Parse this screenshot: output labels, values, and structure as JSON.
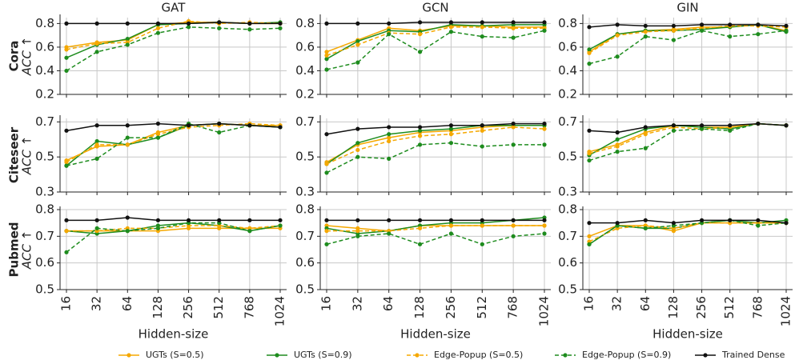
{
  "chart_data": [
    {
      "type": "line",
      "title": "GAT",
      "ylabel": "Cora",
      "ylabel_metric": "ACC ↑",
      "categories": [
        null,
        null,
        null,
        null,
        null,
        null,
        null,
        null
      ],
      "ylim": [
        0.2,
        0.85
      ],
      "yticks": [
        0.2,
        0.4,
        0.6,
        0.8
      ],
      "grid": true,
      "series": [
        {
          "name": "UGTs (S=0.5)",
          "color": "#f5a800",
          "dash": false,
          "values": [
            0.6,
            0.64,
            0.66,
            0.79,
            0.81,
            0.81,
            0.8,
            0.8
          ]
        },
        {
          "name": "UGTs (S=0.9)",
          "color": "#1e8c1e",
          "dash": false,
          "values": [
            0.51,
            0.62,
            0.67,
            0.79,
            0.8,
            0.81,
            0.8,
            0.81
          ]
        },
        {
          "name": "Edge-Popup (S=0.5)",
          "color": "#f5a800",
          "dash": true,
          "values": [
            0.58,
            0.63,
            0.64,
            0.76,
            0.82,
            0.8,
            0.81,
            0.8
          ]
        },
        {
          "name": "Edge-Popup (S=0.9)",
          "color": "#1e8c1e",
          "dash": true,
          "values": [
            0.4,
            0.56,
            0.62,
            0.72,
            0.77,
            0.76,
            0.75,
            0.76
          ]
        },
        {
          "name": "Trained Dense",
          "color": "#111111",
          "dash": false,
          "values": [
            0.8,
            0.8,
            0.8,
            0.8,
            0.8,
            0.81,
            0.8,
            0.8
          ]
        }
      ]
    },
    {
      "type": "line",
      "title": "GCN",
      "categories": [
        null,
        null,
        null,
        null,
        null,
        null,
        null,
        null
      ],
      "ylim": [
        0.2,
        0.85
      ],
      "yticks": [
        0.2,
        0.4,
        0.6,
        0.8
      ],
      "grid": true,
      "series": [
        {
          "name": "UGTs (S=0.5)",
          "color": "#f5a800",
          "dash": false,
          "values": [
            0.56,
            0.66,
            0.76,
            0.74,
            0.78,
            0.78,
            0.77,
            0.77
          ]
        },
        {
          "name": "UGTs (S=0.9)",
          "color": "#1e8c1e",
          "dash": false,
          "values": [
            0.5,
            0.65,
            0.74,
            0.73,
            0.79,
            0.78,
            0.79,
            0.79
          ]
        },
        {
          "name": "Edge-Popup (S=0.5)",
          "color": "#f5a800",
          "dash": true,
          "values": [
            0.53,
            0.62,
            0.72,
            0.71,
            0.77,
            0.77,
            0.76,
            0.76
          ]
        },
        {
          "name": "Edge-Popup (S=0.9)",
          "color": "#1e8c1e",
          "dash": true,
          "values": [
            0.41,
            0.47,
            0.71,
            0.56,
            0.73,
            0.69,
            0.68,
            0.74
          ]
        },
        {
          "name": "Trained Dense",
          "color": "#111111",
          "dash": false,
          "values": [
            0.8,
            0.8,
            0.8,
            0.81,
            0.81,
            0.81,
            0.81,
            0.81
          ]
        }
      ]
    },
    {
      "type": "line",
      "title": "GIN",
      "categories": [
        null,
        null,
        null,
        null,
        null,
        null,
        null,
        null
      ],
      "ylim": [
        0.2,
        0.85
      ],
      "yticks": [
        0.2,
        0.4,
        0.6,
        0.8
      ],
      "grid": true,
      "series": [
        {
          "name": "UGTs (S=0.5)",
          "color": "#f5a800",
          "dash": false,
          "values": [
            0.56,
            0.71,
            0.74,
            0.75,
            0.77,
            0.77,
            0.79,
            0.74
          ]
        },
        {
          "name": "UGTs (S=0.9)",
          "color": "#1e8c1e",
          "dash": false,
          "values": [
            0.58,
            0.71,
            0.74,
            0.74,
            0.75,
            0.77,
            0.79,
            0.73
          ]
        },
        {
          "name": "Edge-Popup (S=0.5)",
          "color": "#f5a800",
          "dash": true,
          "values": [
            0.55,
            0.7,
            0.73,
            0.74,
            0.76,
            0.78,
            0.78,
            0.77
          ]
        },
        {
          "name": "Edge-Popup (S=0.9)",
          "color": "#1e8c1e",
          "dash": true,
          "values": [
            0.46,
            0.52,
            0.69,
            0.66,
            0.74,
            0.69,
            0.71,
            0.74
          ]
        },
        {
          "name": "Trained Dense",
          "color": "#111111",
          "dash": false,
          "values": [
            0.77,
            0.79,
            0.78,
            0.78,
            0.79,
            0.79,
            0.79,
            0.78
          ]
        }
      ]
    },
    {
      "type": "line",
      "ylabel": "Citeseer",
      "ylabel_metric": "ACC ↑",
      "categories": [
        null,
        null,
        null,
        null,
        null,
        null,
        null,
        null
      ],
      "ylim": [
        0.3,
        0.72
      ],
      "yticks": [
        0.3,
        0.5,
        0.7
      ],
      "grid": true,
      "series": [
        {
          "name": "UGTs (S=0.5)",
          "color": "#f5a800",
          "dash": false,
          "values": [
            0.48,
            0.56,
            0.57,
            0.64,
            0.68,
            0.69,
            0.68,
            0.68
          ]
        },
        {
          "name": "UGTs (S=0.9)",
          "color": "#1e8c1e",
          "dash": false,
          "values": [
            0.45,
            0.59,
            0.57,
            0.61,
            0.68,
            0.69,
            0.68,
            0.67
          ]
        },
        {
          "name": "Edge-Popup (S=0.5)",
          "color": "#f5a800",
          "dash": true,
          "values": [
            0.47,
            0.57,
            0.57,
            0.63,
            0.67,
            0.68,
            0.69,
            0.68
          ]
        },
        {
          "name": "Edge-Popup (S=0.9)",
          "color": "#1e8c1e",
          "dash": true,
          "values": [
            0.45,
            0.49,
            0.61,
            0.61,
            0.69,
            0.64,
            0.68,
            0.67
          ]
        },
        {
          "name": "Trained Dense",
          "color": "#111111",
          "dash": false,
          "values": [
            0.65,
            0.68,
            0.68,
            0.69,
            0.68,
            0.69,
            0.68,
            0.67
          ]
        }
      ]
    },
    {
      "type": "line",
      "categories": [
        null,
        null,
        null,
        null,
        null,
        null,
        null,
        null
      ],
      "ylim": [
        0.3,
        0.72
      ],
      "yticks": [
        0.3,
        0.5,
        0.7
      ],
      "grid": true,
      "series": [
        {
          "name": "UGTs (S=0.5)",
          "color": "#f5a800",
          "dash": false,
          "values": [
            0.47,
            0.57,
            0.61,
            0.64,
            0.65,
            0.67,
            0.68,
            0.68
          ]
        },
        {
          "name": "UGTs (S=0.9)",
          "color": "#1e8c1e",
          "dash": false,
          "values": [
            0.46,
            0.58,
            0.63,
            0.65,
            0.66,
            0.68,
            0.68,
            0.68
          ]
        },
        {
          "name": "Edge-Popup (S=0.5)",
          "color": "#f5a800",
          "dash": true,
          "values": [
            0.46,
            0.54,
            0.59,
            0.62,
            0.63,
            0.65,
            0.67,
            0.66
          ]
        },
        {
          "name": "Edge-Popup (S=0.9)",
          "color": "#1e8c1e",
          "dash": true,
          "values": [
            0.41,
            0.5,
            0.49,
            0.57,
            0.58,
            0.56,
            0.57,
            0.57
          ]
        },
        {
          "name": "Trained Dense",
          "color": "#111111",
          "dash": false,
          "values": [
            0.63,
            0.66,
            0.67,
            0.67,
            0.68,
            0.68,
            0.69,
            0.69
          ]
        }
      ]
    },
    {
      "type": "line",
      "categories": [
        null,
        null,
        null,
        null,
        null,
        null,
        null,
        null
      ],
      "ylim": [
        0.3,
        0.72
      ],
      "yticks": [
        0.3,
        0.5,
        0.7
      ],
      "grid": true,
      "series": [
        {
          "name": "UGTs (S=0.5)",
          "color": "#f5a800",
          "dash": false,
          "values": [
            0.53,
            0.57,
            0.64,
            0.68,
            0.67,
            0.67,
            0.69,
            0.68
          ]
        },
        {
          "name": "UGTs (S=0.9)",
          "color": "#1e8c1e",
          "dash": false,
          "values": [
            0.51,
            0.6,
            0.66,
            0.68,
            0.67,
            0.66,
            0.69,
            0.68
          ]
        },
        {
          "name": "Edge-Popup (S=0.5)",
          "color": "#f5a800",
          "dash": true,
          "values": [
            0.52,
            0.56,
            0.63,
            0.67,
            0.66,
            0.67,
            0.69,
            0.68
          ]
        },
        {
          "name": "Edge-Popup (S=0.9)",
          "color": "#1e8c1e",
          "dash": true,
          "values": [
            0.48,
            0.53,
            0.55,
            0.65,
            0.66,
            0.65,
            0.69,
            0.68
          ]
        },
        {
          "name": "Trained Dense",
          "color": "#111111",
          "dash": false,
          "values": [
            0.65,
            0.64,
            0.67,
            0.68,
            0.68,
            0.68,
            0.69,
            0.68
          ]
        }
      ]
    },
    {
      "type": "line",
      "ylabel": "Pubmed",
      "ylabel_metric": "ACC ↑",
      "xlabel": "Hidden-size",
      "categories": [
        "16",
        "32",
        "64",
        "128",
        "256",
        "512",
        "768",
        "1024"
      ],
      "ylim": [
        0.5,
        0.8
      ],
      "yticks": [
        0.5,
        0.6,
        0.7,
        0.8
      ],
      "grid": true,
      "series": [
        {
          "name": "UGTs (S=0.5)",
          "color": "#f5a800",
          "dash": false,
          "values": [
            0.72,
            0.72,
            0.72,
            0.72,
            0.73,
            0.73,
            0.73,
            0.73
          ]
        },
        {
          "name": "UGTs (S=0.9)",
          "color": "#1e8c1e",
          "dash": false,
          "values": [
            0.72,
            0.71,
            0.72,
            0.74,
            0.75,
            0.74,
            0.72,
            0.74
          ]
        },
        {
          "name": "Edge-Popup (S=0.5)",
          "color": "#f5a800",
          "dash": true,
          "values": [
            0.72,
            0.72,
            0.73,
            0.73,
            0.74,
            0.74,
            0.73,
            0.74
          ]
        },
        {
          "name": "Edge-Popup (S=0.9)",
          "color": "#1e8c1e",
          "dash": true,
          "values": [
            0.64,
            0.73,
            0.72,
            0.73,
            0.75,
            0.75,
            0.72,
            0.74
          ]
        },
        {
          "name": "Trained Dense",
          "color": "#111111",
          "dash": false,
          "values": [
            0.76,
            0.76,
            0.77,
            0.76,
            0.76,
            0.76,
            0.76,
            0.76
          ]
        }
      ]
    },
    {
      "type": "line",
      "xlabel": "Hidden-size",
      "categories": [
        "16",
        "32",
        "64",
        "128",
        "256",
        "512",
        "768",
        "1024"
      ],
      "ylim": [
        0.5,
        0.8
      ],
      "yticks": [
        0.5,
        0.6,
        0.7,
        0.8
      ],
      "grid": true,
      "series": [
        {
          "name": "UGTs (S=0.5)",
          "color": "#f5a800",
          "dash": false,
          "values": [
            0.74,
            0.73,
            0.72,
            0.74,
            0.74,
            0.74,
            0.74,
            0.74
          ]
        },
        {
          "name": "UGTs (S=0.9)",
          "color": "#1e8c1e",
          "dash": false,
          "values": [
            0.73,
            0.71,
            0.72,
            0.74,
            0.75,
            0.75,
            0.76,
            0.77
          ]
        },
        {
          "name": "Edge-Popup (S=0.5)",
          "color": "#f5a800",
          "dash": true,
          "values": [
            0.72,
            0.72,
            0.72,
            0.73,
            0.74,
            0.74,
            0.74,
            0.74
          ]
        },
        {
          "name": "Edge-Popup (S=0.9)",
          "color": "#1e8c1e",
          "dash": true,
          "values": [
            0.67,
            0.7,
            0.71,
            0.67,
            0.71,
            0.67,
            0.7,
            0.71
          ]
        },
        {
          "name": "Trained Dense",
          "color": "#111111",
          "dash": false,
          "values": [
            0.76,
            0.76,
            0.76,
            0.76,
            0.76,
            0.76,
            0.76,
            0.76
          ]
        }
      ]
    },
    {
      "type": "line",
      "xlabel": "Hidden-size",
      "categories": [
        "16",
        "32",
        "64",
        "128",
        "256",
        "512",
        "768",
        "1024"
      ],
      "ylim": [
        0.5,
        0.8
      ],
      "yticks": [
        0.5,
        0.6,
        0.7,
        0.8
      ],
      "grid": true,
      "series": [
        {
          "name": "UGTs (S=0.5)",
          "color": "#f5a800",
          "dash": false,
          "values": [
            0.7,
            0.74,
            0.74,
            0.72,
            0.75,
            0.75,
            0.75,
            0.75
          ]
        },
        {
          "name": "UGTs (S=0.9)",
          "color": "#1e8c1e",
          "dash": false,
          "values": [
            0.67,
            0.74,
            0.73,
            0.73,
            0.75,
            0.76,
            0.75,
            0.76
          ]
        },
        {
          "name": "Edge-Popup (S=0.5)",
          "color": "#f5a800",
          "dash": true,
          "values": [
            0.68,
            0.73,
            0.74,
            0.73,
            0.75,
            0.75,
            0.75,
            0.75
          ]
        },
        {
          "name": "Edge-Popup (S=0.9)",
          "color": "#1e8c1e",
          "dash": true,
          "values": [
            0.67,
            0.74,
            0.73,
            0.74,
            0.75,
            0.76,
            0.74,
            0.75
          ]
        },
        {
          "name": "Trained Dense",
          "color": "#111111",
          "dash": false,
          "values": [
            0.75,
            0.75,
            0.76,
            0.75,
            0.76,
            0.76,
            0.76,
            0.75
          ]
        }
      ]
    }
  ]
}
